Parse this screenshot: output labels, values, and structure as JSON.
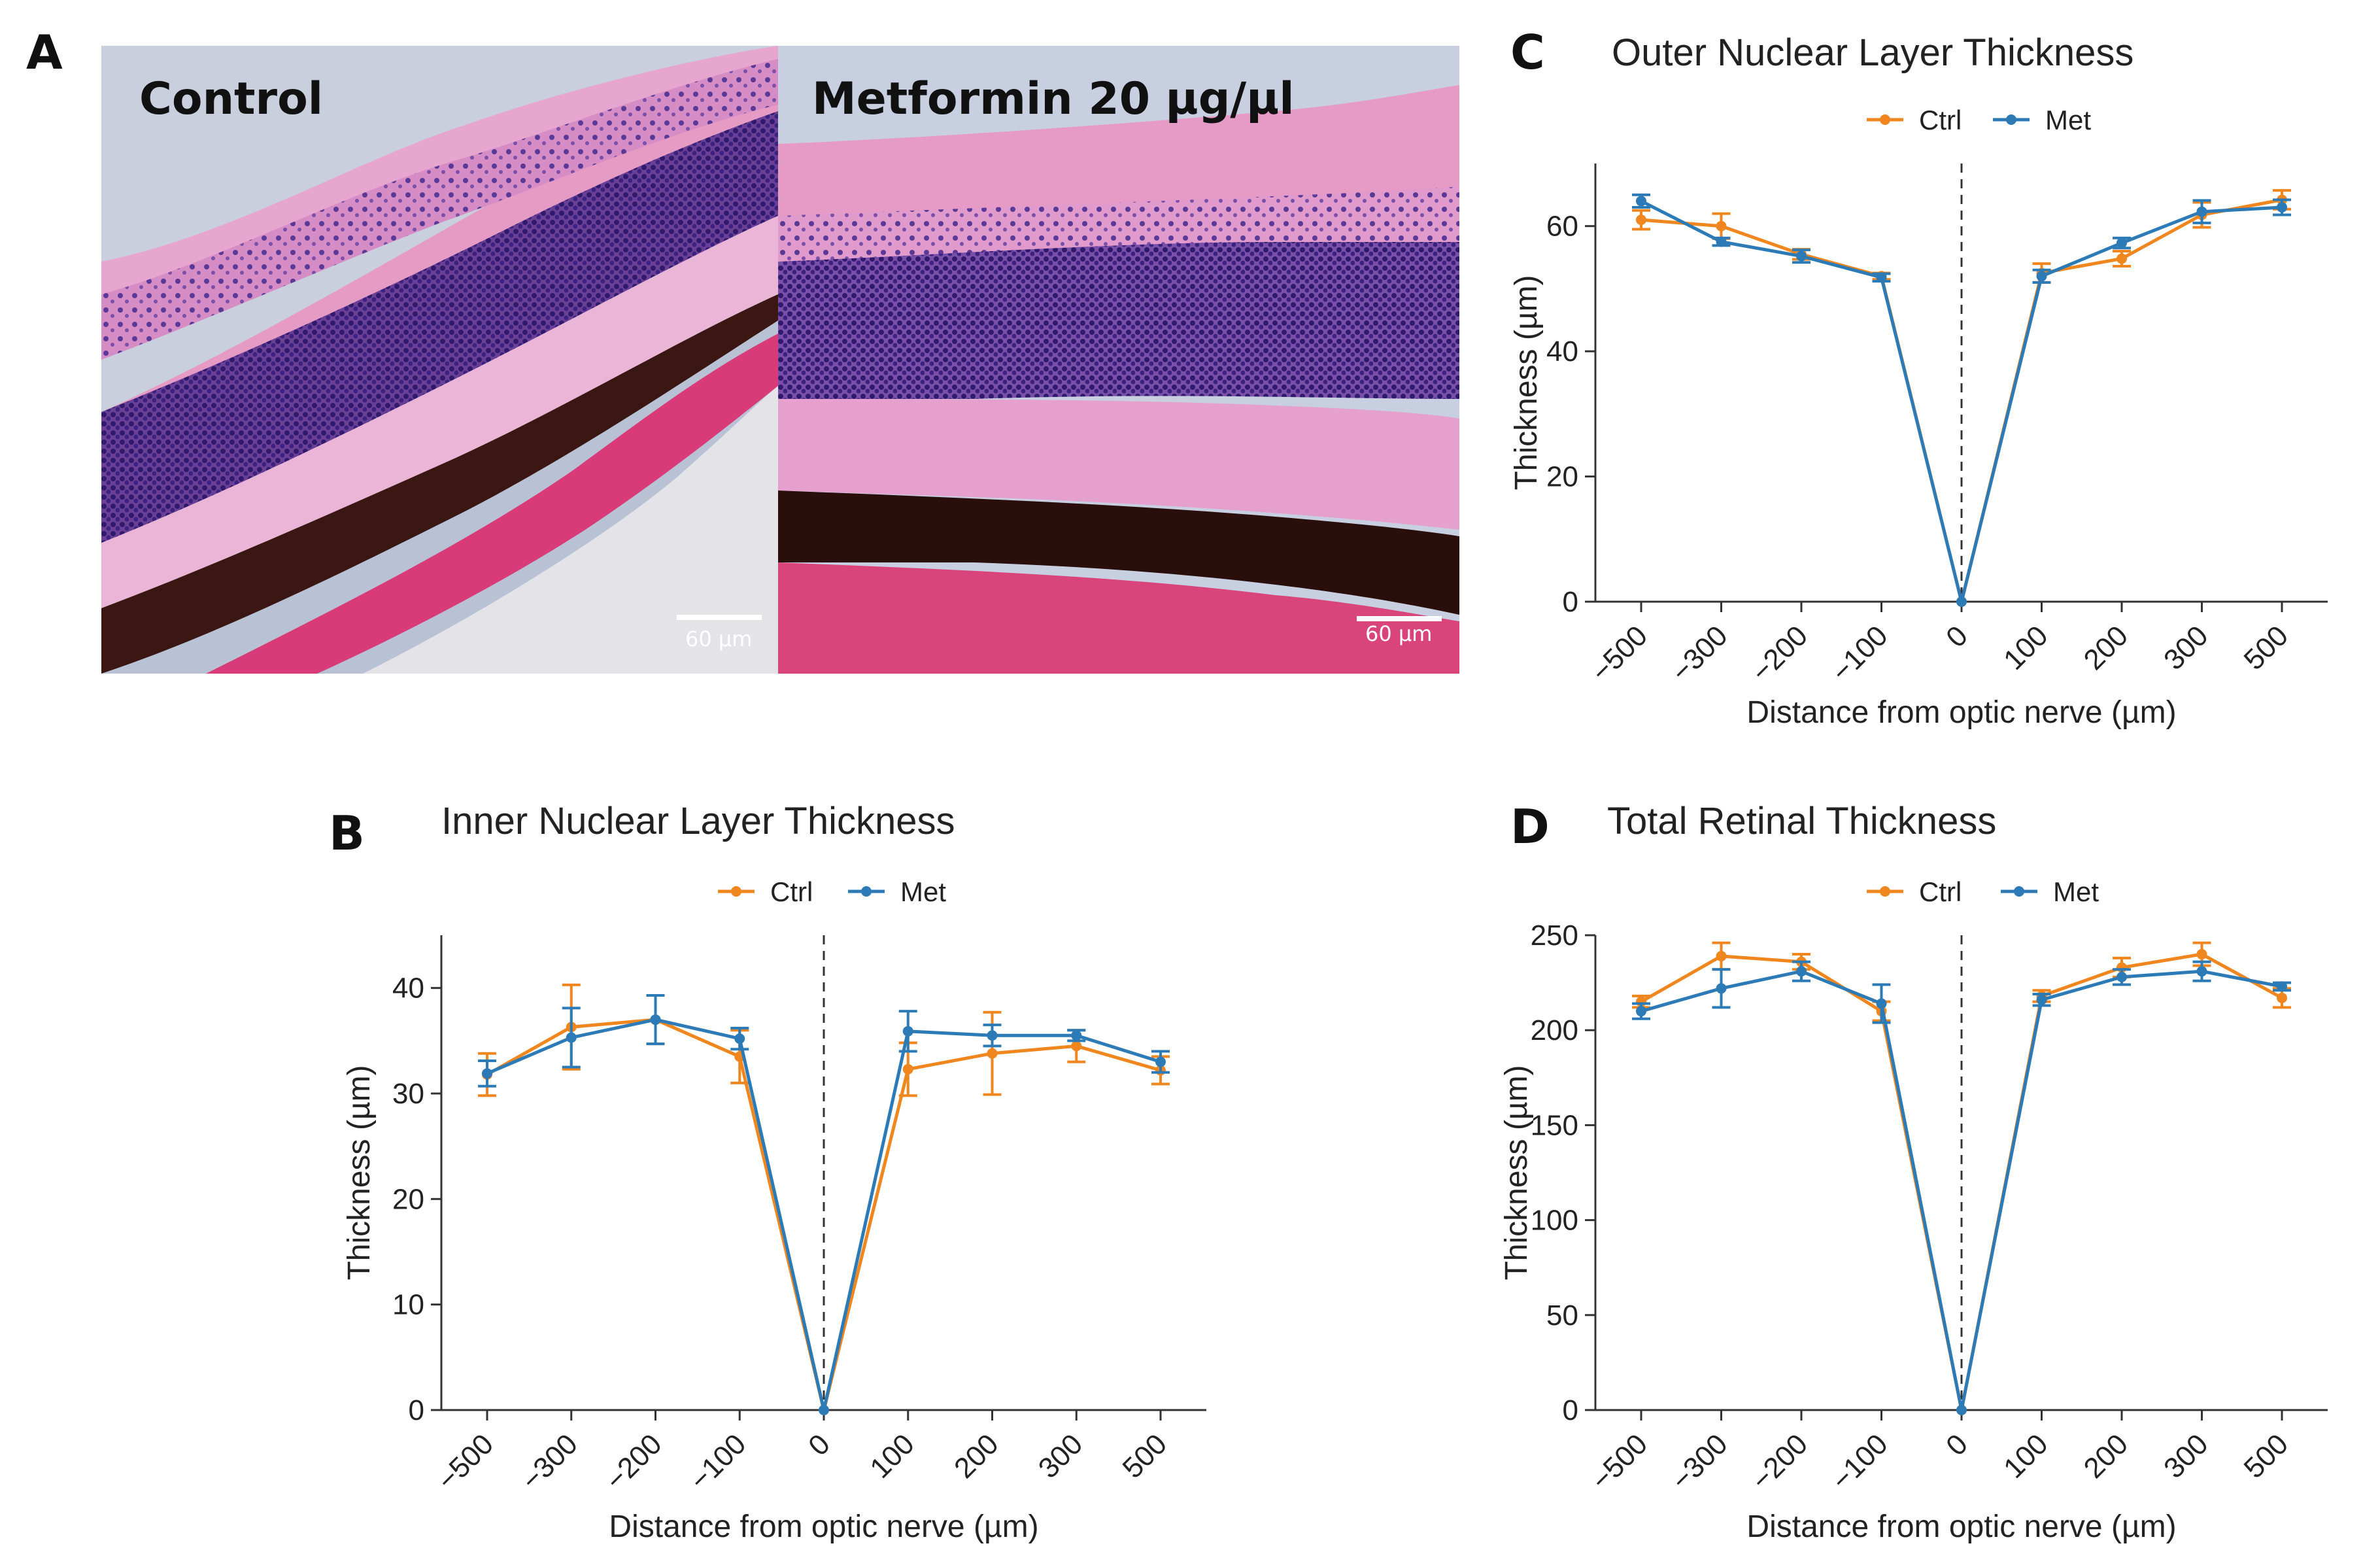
{
  "panels": {
    "a": "A",
    "b": "B",
    "c": "C",
    "d": "D"
  },
  "micrographs": [
    {
      "title": "Control",
      "scale_label": "60 µm"
    },
    {
      "title": "Metformin 20 µg/µl",
      "scale_label": "60 µm"
    }
  ],
  "colors": {
    "ctrl": "#F0861E",
    "met": "#2C7BB6",
    "axis": "#333333"
  },
  "chart_data": [
    {
      "id": "onl",
      "type": "line",
      "title": "Outer Nuclear Layer Thickness",
      "xlabel": "Distance from optic nerve (µm)",
      "ylabel": "Thickness (µm)",
      "categories": [
        "-500",
        "-300",
        "-200",
        "-100",
        "0",
        "100",
        "200",
        "300",
        "500"
      ],
      "ylim": [
        0,
        70
      ],
      "yticks": [
        0,
        20,
        40,
        60
      ],
      "series": [
        {
          "name": "Ctrl",
          "values": [
            61,
            60,
            55.5,
            52,
            0,
            52.5,
            54.8,
            61.8,
            64.2
          ],
          "errors": [
            1.5,
            2.0,
            0.8,
            0.5,
            0,
            1.5,
            1.2,
            2.0,
            1.5
          ]
        },
        {
          "name": "Met",
          "values": [
            64,
            57.5,
            55.2,
            51.8,
            0,
            52,
            57.3,
            62.3,
            63
          ],
          "errors": [
            1.0,
            0.6,
            1.0,
            0.6,
            0,
            1.0,
            0.8,
            1.8,
            1.2
          ]
        }
      ]
    },
    {
      "id": "inl",
      "type": "line",
      "title": "Inner Nuclear Layer Thickness",
      "xlabel": "Distance from optic nerve (µm)",
      "ylabel": "Thickness (µm)",
      "categories": [
        "-500",
        "-300",
        "-200",
        "-100",
        "0",
        "100",
        "200",
        "300",
        "500"
      ],
      "ylim": [
        0,
        45
      ],
      "yticks": [
        0,
        10,
        20,
        30,
        40
      ],
      "series": [
        {
          "name": "Ctrl",
          "values": [
            31.8,
            36.3,
            37,
            33.5,
            0,
            32.3,
            33.8,
            34.5,
            32.2
          ],
          "errors": [
            2.0,
            4.0,
            2.3,
            2.5,
            0,
            2.5,
            3.9,
            1.5,
            1.3
          ]
        },
        {
          "name": "Met",
          "values": [
            31.9,
            35.3,
            37,
            35.2,
            0,
            35.9,
            35.5,
            35.5,
            33
          ],
          "errors": [
            1.2,
            2.8,
            2.3,
            1.0,
            0,
            1.9,
            1.0,
            0.5,
            1.0
          ]
        }
      ]
    },
    {
      "id": "total",
      "type": "line",
      "title": "Total Retinal Thickness",
      "xlabel": "Distance from optic nerve (µm)",
      "ylabel": "Thickness (µm)",
      "categories": [
        "-500",
        "-300",
        "-200",
        "-100",
        "0",
        "100",
        "200",
        "300",
        "500"
      ],
      "ylim": [
        0,
        250
      ],
      "yticks": [
        0,
        50,
        100,
        150,
        200,
        250
      ],
      "series": [
        {
          "name": "Ctrl",
          "values": [
            215,
            239,
            236,
            210,
            0,
            218,
            233,
            240,
            217
          ],
          "errors": [
            3,
            7,
            4,
            5,
            0,
            3,
            5,
            6,
            5
          ]
        },
        {
          "name": "Met",
          "values": [
            210,
            222,
            231,
            214,
            0,
            216,
            228,
            231,
            223
          ],
          "errors": [
            4,
            10,
            5,
            10,
            0,
            3,
            4,
            5,
            2
          ]
        }
      ]
    }
  ]
}
